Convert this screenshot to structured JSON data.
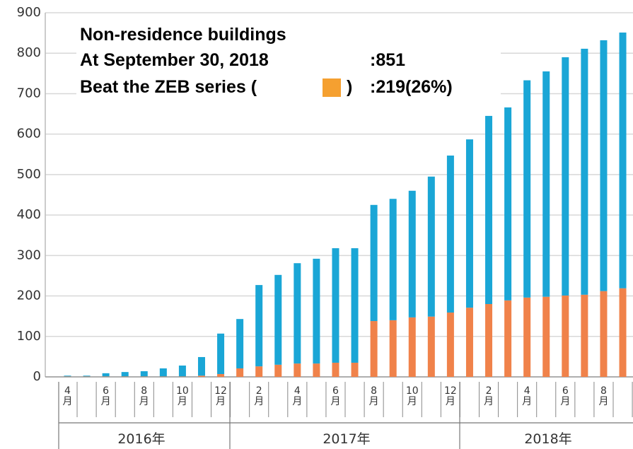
{
  "chart_data": {
    "type": "stacked_bar",
    "annotation": {
      "line1": "Non-residence buildings",
      "line2": "At September 30, 2018",
      "line2_value": ":851",
      "line3": "Beat the ZEB series (",
      "line3_close": ")",
      "line3_value": ":219(26%)"
    },
    "categories": [
      "4月",
      null,
      "6月",
      null,
      "8月",
      null,
      "10月",
      null,
      "12月",
      null,
      "2月",
      null,
      "4月",
      null,
      "6月",
      null,
      "8月",
      null,
      "10月",
      null,
      "12月",
      null,
      "2月",
      null,
      "4月",
      null,
      "6月",
      null,
      "8月",
      null
    ],
    "years": [
      "2016年",
      "2017年",
      "2018年"
    ],
    "series": [
      {
        "color": "#f0824a",
        "values": [
          1,
          1,
          1,
          1,
          1,
          1,
          1,
          3,
          7,
          21,
          26,
          30,
          33,
          33,
          35,
          35,
          138,
          140,
          147,
          149,
          159,
          171,
          180,
          189,
          196,
          198,
          201,
          203,
          212,
          219
        ]
      },
      {
        "color": "#1aa6d6",
        "values": [
          2,
          2,
          8,
          11,
          13,
          20,
          27,
          46,
          100,
          122,
          201,
          222,
          248,
          259,
          283,
          283,
          287,
          300,
          313,
          346,
          388,
          416,
          465,
          477,
          537,
          557,
          589,
          608,
          620,
          632
        ]
      }
    ],
    "ylim": [
      0,
      900
    ],
    "yticks": [
      0,
      100,
      200,
      300,
      400,
      500,
      600,
      700,
      800,
      900
    ],
    "grid": true
  }
}
